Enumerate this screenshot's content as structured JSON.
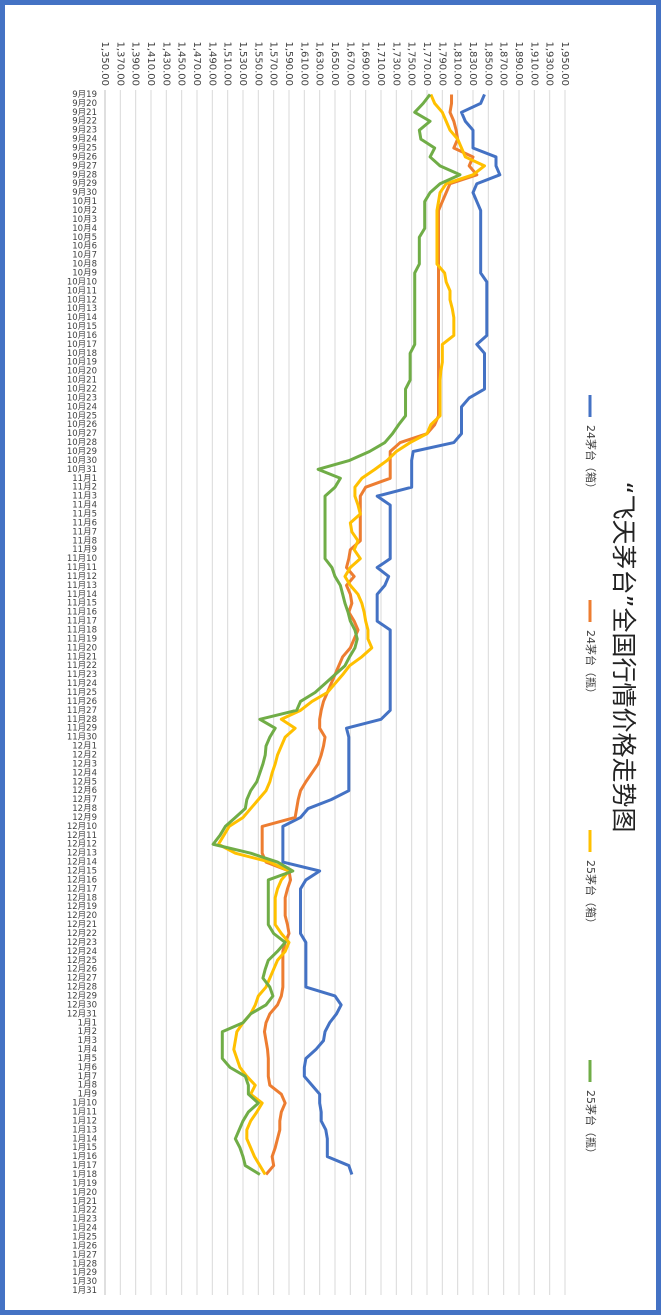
{
  "chart_data": {
    "type": "line",
    "title": "“飞天茅台”全国行情价格走势图",
    "grid": true,
    "categories": [
      "9月19",
      "9月20",
      "9月21",
      "9月22",
      "9月23",
      "9月24",
      "9月25",
      "9月26",
      "9月27",
      "9月28",
      "9月29",
      "9月30",
      "10月1",
      "10月2",
      "10月3",
      "10月4",
      "10月5",
      "10月6",
      "10月7",
      "10月8",
      "10月9",
      "10月10",
      "10月11",
      "10月12",
      "10月13",
      "10月14",
      "10月15",
      "10月16",
      "10月17",
      "10月18",
      "10月19",
      "10月20",
      "10月21",
      "10月22",
      "10月23",
      "10月24",
      "10月25",
      "10月26",
      "10月27",
      "10月28",
      "10月29",
      "10月30",
      "10月31",
      "11月1",
      "11月2",
      "11月3",
      "11月4",
      "11月5",
      "11月6",
      "11月7",
      "11月8",
      "11月9",
      "11月10",
      "11月11",
      "11月12",
      "11月13",
      "11月14",
      "11月15",
      "11月16",
      "11月17",
      "11月18",
      "11月19",
      "11月20",
      "11月21",
      "11月22",
      "11月23",
      "11月24",
      "11月25",
      "11月26",
      "11月27",
      "11月28",
      "11月29",
      "11月30",
      "12月1",
      "12月2",
      "12月3",
      "12月4",
      "12月5",
      "12月6",
      "12月7",
      "12月8",
      "12月9",
      "12月10",
      "12月11",
      "12月12",
      "12月13",
      "12月14",
      "12月15",
      "12月16",
      "12月17",
      "12月18",
      "12月19",
      "12月20",
      "12月21",
      "12月22",
      "12月23",
      "12月24",
      "12月25",
      "12月26",
      "12月27",
      "12月28",
      "12月29",
      "12月30",
      "12月31",
      "1月1",
      "1月2",
      "1月3",
      "1月4",
      "1月5",
      "1月6",
      "1月7",
      "1月8",
      "1月9",
      "1月10",
      "1月11",
      "1月12",
      "1月13",
      "1月14",
      "1月15",
      "1月16",
      "1月17",
      "1月18",
      "1月19",
      "1月20",
      "1月21",
      "1月22",
      "1月23",
      "1月24",
      "1月25",
      "1月26",
      "1月27",
      "1月28",
      "1月29",
      "1月30",
      "1月31"
    ],
    "ylim": [
      1350,
      1950
    ],
    "yticks": [
      {
        "value": 1350,
        "label": "1,350.00"
      },
      {
        "value": 1370,
        "label": "1,370.00"
      },
      {
        "value": 1390,
        "label": "1,390.00"
      },
      {
        "value": 1410,
        "label": "1,410.00"
      },
      {
        "value": 1430,
        "label": "1,430.00"
      },
      {
        "value": 1450,
        "label": "1,450.00"
      },
      {
        "value": 1470,
        "label": "1,470.00"
      },
      {
        "value": 1490,
        "label": "1,490.00"
      },
      {
        "value": 1510,
        "label": "1,510.00"
      },
      {
        "value": 1530,
        "label": "1,530.00"
      },
      {
        "value": 1550,
        "label": "1,550.00"
      },
      {
        "value": 1570,
        "label": "1,570.00"
      },
      {
        "value": 1590,
        "label": "1,590.00"
      },
      {
        "value": 1610,
        "label": "1,610.00"
      },
      {
        "value": 1630,
        "label": "1,630.00"
      },
      {
        "value": 1650,
        "label": "1,650.00"
      },
      {
        "value": 1670,
        "label": "1,670.00"
      },
      {
        "value": 1690,
        "label": "1,690.00"
      },
      {
        "value": 1710,
        "label": "1,710.00"
      },
      {
        "value": 1730,
        "label": "1,730.00"
      },
      {
        "value": 1750,
        "label": "1,750.00"
      },
      {
        "value": 1770,
        "label": "1,770.00"
      },
      {
        "value": 1790,
        "label": "1,790.00"
      },
      {
        "value": 1810,
        "label": "1,810.00"
      },
      {
        "value": 1830,
        "label": "1,830.00"
      },
      {
        "value": 1850,
        "label": "1,850.00"
      },
      {
        "value": 1870,
        "label": "1,870.00"
      },
      {
        "value": 1890,
        "label": "1,890.00"
      },
      {
        "value": 1910,
        "label": "1,910.00"
      },
      {
        "value": 1930,
        "label": "1,930.00"
      },
      {
        "value": 1950,
        "label": "1,950.00"
      }
    ],
    "series": [
      {
        "name": "24茅台（箱）",
        "color": "#4472c4",
        "values": [
          1845,
          1840,
          1815,
          1820,
          1830,
          1830,
          1830,
          1860,
          1860,
          1865,
          1835,
          1830,
          1835,
          1840,
          1840,
          1840,
          1840,
          1840,
          1840,
          1840,
          1840,
          1848,
          1848,
          1848,
          1848,
          1848,
          1848,
          1848,
          1835,
          1845,
          1845,
          1845,
          1845,
          1845,
          1825,
          1815,
          1815,
          1815,
          1815,
          1805,
          1752,
          1750,
          1750,
          1750,
          1750,
          1705,
          1722,
          1722,
          1722,
          1722,
          1722,
          1722,
          1722,
          1705,
          1720,
          1715,
          1705,
          1705,
          1705,
          1705,
          1722,
          1722,
          1722,
          1722,
          1722,
          1722,
          1722,
          1722,
          1722,
          1722,
          1710,
          1665,
          1668,
          1668,
          1668,
          1668,
          1668,
          1668,
          1668,
          1645,
          1615,
          1605,
          1582,
          1582,
          1582,
          1582,
          1582,
          1630,
          1612,
          1605,
          1605,
          1605,
          1605,
          1605,
          1605,
          1612,
          1612,
          1612,
          1612,
          1612,
          1612,
          1650,
          1658,
          1652,
          1643,
          1637,
          1635,
          1625,
          1612,
          1610,
          1610,
          1620,
          1630,
          1630,
          1632,
          1632,
          1638,
          1640,
          1640,
          1640,
          1668,
          1672,
          null,
          null,
          null,
          null,
          null,
          null,
          null,
          null,
          null,
          null,
          null,
          null,
          null
        ]
      },
      {
        "name": "24茅台（瓶）",
        "color": "#ed7d31",
        "values": [
          1802,
          1802,
          1800,
          1805,
          1808,
          1810,
          1805,
          1830,
          1825,
          1835,
          1800,
          1795,
          1790,
          1785,
          1785,
          1785,
          1785,
          1785,
          1785,
          1785,
          1785,
          1785,
          1785,
          1785,
          1785,
          1785,
          1785,
          1785,
          1785,
          1785,
          1785,
          1785,
          1785,
          1785,
          1785,
          1785,
          1785,
          1780,
          1770,
          1735,
          1722,
          1722,
          1722,
          1722,
          1690,
          1683,
          1683,
          1683,
          1683,
          1683,
          1683,
          1670,
          1668,
          1665,
          1675,
          1665,
          1670,
          1672,
          1668,
          1675,
          1680,
          1675,
          1670,
          1660,
          1655,
          1650,
          1645,
          1640,
          1635,
          1632,
          1630,
          1630,
          1637,
          1635,
          1632,
          1628,
          1620,
          1612,
          1605,
          1602,
          1600,
          1598,
          1555,
          1555,
          1555,
          1555,
          1560,
          1590,
          1592,
          1588,
          1585,
          1585,
          1585,
          1588,
          1590,
          1585,
          1582,
          1582,
          1582,
          1582,
          1582,
          1580,
          1575,
          1565,
          1560,
          1558,
          1560,
          1562,
          1563,
          1563,
          1563,
          1565,
          1580,
          1585,
          1580,
          1578,
          1578,
          1575,
          1572,
          1568,
          1570,
          1560,
          null,
          null,
          null,
          null,
          null,
          null,
          null,
          null,
          null,
          null,
          null,
          null,
          null
        ]
      },
      {
        "name": "25茅台（箱）",
        "color": "#ffc000",
        "values": [
          1775,
          1780,
          1790,
          1795,
          1800,
          1810,
          1815,
          1820,
          1845,
          1830,
          1795,
          1787,
          1785,
          1783,
          1783,
          1783,
          1783,
          1783,
          1783,
          1783,
          1793,
          1795,
          1800,
          1800,
          1803,
          1805,
          1805,
          1805,
          1790,
          1790,
          1790,
          1788,
          1787,
          1787,
          1787,
          1787,
          1787,
          1775,
          1770,
          1748,
          1730,
          1718,
          1702,
          1685,
          1676,
          1676,
          1680,
          1683,
          1670,
          1672,
          1680,
          1675,
          1683,
          1670,
          1663,
          1670,
          1680,
          1685,
          1688,
          1690,
          1693,
          1693,
          1698,
          1685,
          1669,
          1660,
          1650,
          1640,
          1620,
          1605,
          1580,
          1598,
          1585,
          1580,
          1575,
          1572,
          1568,
          1565,
          1560,
          1550,
          1540,
          1530,
          1512,
          1505,
          1498,
          1520,
          1565,
          1590,
          1580,
          1575,
          1572,
          1572,
          1572,
          1572,
          1580,
          1590,
          1585,
          1575,
          1570,
          1565,
          1560,
          1550,
          1546,
          1540,
          1530,
          1522,
          1520,
          1518,
          1522,
          1526,
          1535,
          1546,
          1540,
          1555,
          1548,
          1540,
          1535,
          1535,
          1540,
          1545,
          1552,
          1559,
          null,
          null,
          null,
          null,
          null,
          null,
          null,
          null,
          null,
          null,
          null,
          null,
          null
        ]
      },
      {
        "name": "25茅台（瓶）",
        "color": "#70ad47",
        "values": [
          1774,
          1765,
          1754,
          1774,
          1760,
          1762,
          1780,
          1774,
          1787,
          1813,
          1787,
          1774,
          1767,
          1767,
          1767,
          1767,
          1760,
          1760,
          1760,
          1760,
          1754,
          1754,
          1754,
          1754,
          1754,
          1754,
          1754,
          1754,
          1754,
          1748,
          1748,
          1748,
          1748,
          1742,
          1742,
          1742,
          1742,
          1733,
          1725,
          1715,
          1695,
          1669,
          1628,
          1657,
          1650,
          1637,
          1637,
          1637,
          1637,
          1637,
          1637,
          1637,
          1637,
          1646,
          1650,
          1657,
          1660,
          1663,
          1667,
          1670,
          1676,
          1679,
          1676,
          1669,
          1663,
          1650,
          1637,
          1624,
          1605,
          1600,
          1552,
          1572,
          1565,
          1560,
          1559,
          1556,
          1552,
          1548,
          1540,
          1535,
          1533,
          1520,
          1507,
          1500,
          1491,
          1540,
          1575,
          1595,
          1563,
          1563,
          1563,
          1563,
          1563,
          1563,
          1570,
          1585,
          1575,
          1563,
          1559,
          1556,
          1565,
          1569,
          1560,
          1540,
          1530,
          1503,
          1503,
          1503,
          1503,
          1513,
          1533,
          1537,
          1537,
          1550,
          1537,
          1530,
          1525,
          1520,
          1526,
          1530,
          1533,
          1552,
          null,
          null,
          null,
          null,
          null,
          null,
          null,
          null,
          null,
          null,
          null,
          null,
          null
        ]
      }
    ]
  }
}
